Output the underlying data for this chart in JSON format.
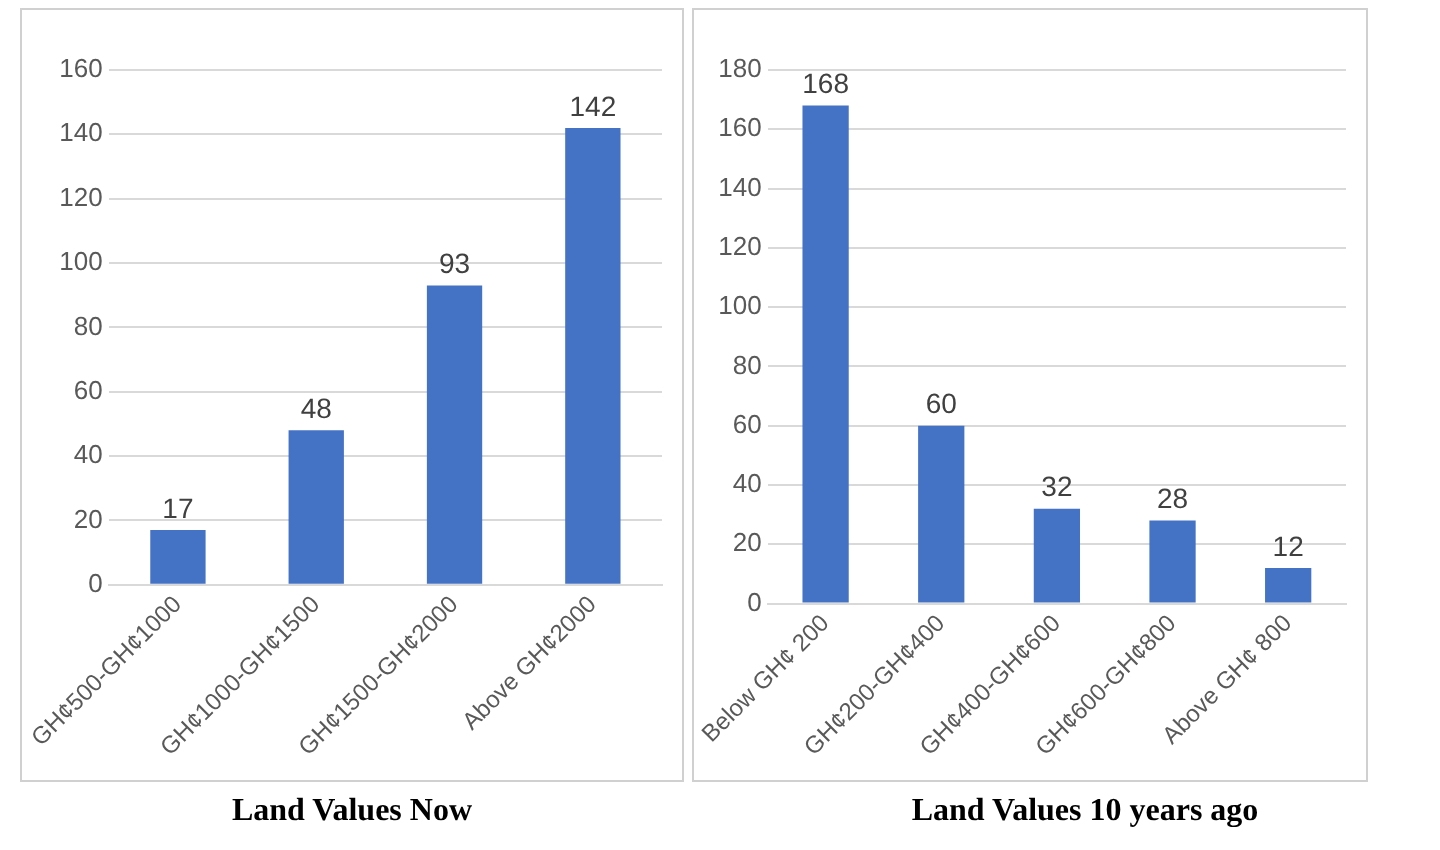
{
  "chart_data": [
    {
      "type": "bar",
      "title": "Land Values Now",
      "categories": [
        "GH¢500-GH¢1000",
        "GH¢1000-GH¢1500",
        "GH¢1500-GH¢2000",
        "Above GH¢2000"
      ],
      "values": [
        17,
        48,
        93,
        142
      ],
      "color": "#4472c4",
      "ylim": [
        0,
        160
      ],
      "yticks": [
        0,
        20,
        40,
        60,
        80,
        100,
        120,
        140,
        160
      ],
      "grid": "y",
      "data_labels": true,
      "legend": false
    },
    {
      "type": "bar",
      "title": "Land Values 10 years ago",
      "categories": [
        "Below GH¢ 200",
        "GH¢200-GH¢400",
        "GH¢400-GH¢600",
        "GH¢600-GH¢800",
        "Above GH¢ 800"
      ],
      "values": [
        168,
        60,
        32,
        28,
        12
      ],
      "color": "#4472c4",
      "ylim": [
        0,
        180
      ],
      "yticks": [
        0,
        20,
        40,
        60,
        80,
        100,
        120,
        140,
        160,
        180
      ],
      "grid": "y",
      "data_labels": true,
      "legend": false
    }
  ]
}
